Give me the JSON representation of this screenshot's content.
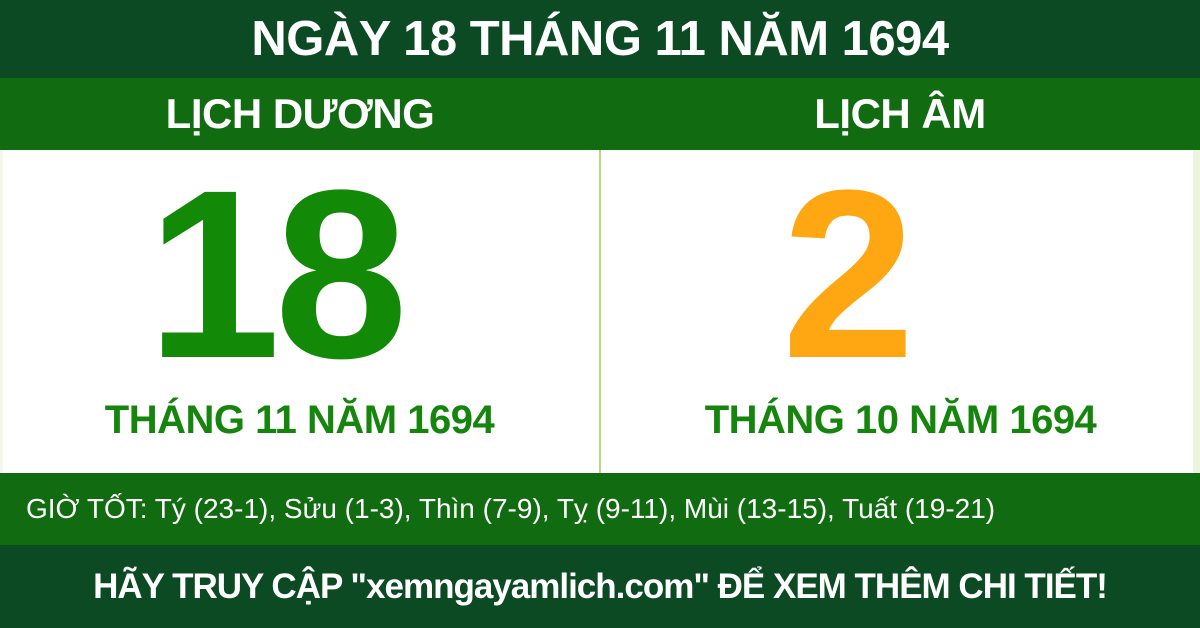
{
  "header": {
    "title": "NGÀY 18 THÁNG 11 NĂM 1694"
  },
  "solar": {
    "header": "LỊCH DƯƠNG",
    "day": "18",
    "month_year": "THÁNG 11 NĂM 1694"
  },
  "lunar": {
    "header": "LỊCH ÂM",
    "day": "2",
    "month_year": "THÁNG 10 NĂM 1694"
  },
  "good_hours": {
    "label": "GIỜ TỐT",
    "text": "GIỜ TỐT: Tý (23-1), Sửu (1-3), Thìn (7-9), Tỵ (9-11), Mùi (13-15), Tuất (19-21)",
    "hours": [
      {
        "name": "Tý",
        "range": "23-1"
      },
      {
        "name": "Sửu",
        "range": "1-3"
      },
      {
        "name": "Thìn",
        "range": "7-9"
      },
      {
        "name": "Tỵ",
        "range": "9-11"
      },
      {
        "name": "Mùi",
        "range": "13-15"
      },
      {
        "name": "Tuất",
        "range": "19-21"
      }
    ]
  },
  "footer": {
    "text": "HÃY TRUY CẬP \"xemngayamlich.com\" ĐỂ XEM THÊM CHI TIẾT!",
    "website": "xemngayamlich.com"
  },
  "colors": {
    "dark_green_bars": "#0b4a23",
    "band_green": "#116b10",
    "solar_day_green": "#128a08",
    "month_text_green": "#15850d",
    "lunar_day_orange": "#ffa713",
    "divider_light_green": "#b5da83",
    "text_white": "#ffffff"
  }
}
